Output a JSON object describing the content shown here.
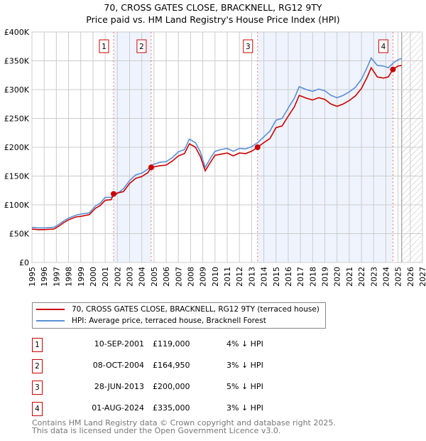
{
  "title": "70, CROSS GATES CLOSE, BRACKNELL, RG12 9TY",
  "subtitle": "Price paid vs. HM Land Registry's House Price Index (HPI)",
  "colors": {
    "property": "#cc0000",
    "hpi": "#5b8fd6",
    "shade": "#eef3fd",
    "grid": "#cccccc"
  },
  "chart_data": {
    "type": "line",
    "title": "70, CROSS GATES CLOSE, BRACKNELL, RG12 9TY — Price paid vs. HM Land Registry's House Price Index (HPI)",
    "xlim": [
      1995,
      2027
    ],
    "ylim": [
      0,
      400000
    ],
    "xticks": [
      "1995",
      "1996",
      "1997",
      "1998",
      "1999",
      "2000",
      "2001",
      "2002",
      "2003",
      "2004",
      "2005",
      "2006",
      "2007",
      "2008",
      "2009",
      "2010",
      "2011",
      "2012",
      "2013",
      "2014",
      "2015",
      "2016",
      "2017",
      "2018",
      "2019",
      "2020",
      "2021",
      "2022",
      "2023",
      "2024",
      "2025",
      "2026",
      "2027"
    ],
    "yticks": [
      {
        "v": 0,
        "label": "£0"
      },
      {
        "v": 50000,
        "label": "£50K"
      },
      {
        "v": 100000,
        "label": "£100K"
      },
      {
        "v": 150000,
        "label": "£150K"
      },
      {
        "v": 200000,
        "label": "£200K"
      },
      {
        "v": 250000,
        "label": "£250K"
      },
      {
        "v": 300000,
        "label": "£300K"
      },
      {
        "v": 350000,
        "label": "£350K"
      },
      {
        "v": 400000,
        "label": "£400K"
      }
    ],
    "forecast_start": 2025.3,
    "series": [
      {
        "name": "HPI: Average price, terraced house, Bracknell Forest",
        "x": [
          1995,
          1995.5,
          1996,
          1996.8,
          1997.2,
          1997.6,
          1998,
          1998.6,
          1999,
          1999.7,
          2000.2,
          2000.6,
          2001,
          2001.5,
          2001.9,
          2002.5,
          2003,
          2003.5,
          2004,
          2004.5,
          2004.9,
          2005.5,
          2006,
          2006.5,
          2007,
          2007.5,
          2007.9,
          2008.4,
          2008.8,
          2009.2,
          2009.6,
          2010,
          2010.5,
          2011,
          2011.5,
          2012,
          2012.5,
          2013,
          2013.5,
          2014,
          2014.5,
          2015,
          2015.5,
          2016,
          2016.5,
          2016.9,
          2017.5,
          2018,
          2018.5,
          2019,
          2019.5,
          2020,
          2020.5,
          2021,
          2021.5,
          2022,
          2022.5,
          2022.8,
          2023.3,
          2023.8,
          2024.2,
          2024.6,
          2025,
          2025.3
        ],
        "values": [
          61000,
          60000,
          60000,
          61000,
          66000,
          72000,
          77000,
          82000,
          84000,
          86000,
          98000,
          103000,
          113000,
          113000,
          118000,
          128000,
          142000,
          152000,
          155000,
          162000,
          170000,
          174000,
          175000,
          182000,
          192000,
          196000,
          214000,
          208000,
          192000,
          165000,
          180000,
          193000,
          196000,
          198000,
          193000,
          198000,
          197000,
          201000,
          208000,
          218000,
          228000,
          247000,
          250000,
          268000,
          285000,
          305000,
          300000,
          297000,
          301000,
          298000,
          290000,
          286000,
          290000,
          296000,
          304000,
          318000,
          340000,
          355000,
          342000,
          341000,
          338000,
          346000,
          352000,
          354000
        ]
      },
      {
        "name": "70, CROSS GATES CLOSE, BRACKNELL, RG12 9TY (terraced house)",
        "x": [
          1995,
          1995.5,
          1996,
          1996.8,
          1997.2,
          1997.6,
          1998,
          1998.6,
          1999,
          1999.7,
          2000.2,
          2000.6,
          2001,
          2001.5,
          2001.69,
          2002.5,
          2003,
          2003.5,
          2004,
          2004.5,
          2004.77,
          2005.5,
          2006,
          2006.5,
          2007,
          2007.5,
          2007.9,
          2008.4,
          2008.8,
          2009.2,
          2009.6,
          2010,
          2010.5,
          2011,
          2011.5,
          2012,
          2012.5,
          2013,
          2013.49,
          2014,
          2014.5,
          2015,
          2015.5,
          2016,
          2016.5,
          2016.9,
          2017.5,
          2018,
          2018.5,
          2019,
          2019.5,
          2020,
          2020.5,
          2021,
          2021.5,
          2022,
          2022.5,
          2022.8,
          2023.3,
          2023.8,
          2024.2,
          2024.58,
          2025,
          2025.3
        ],
        "values": [
          58000,
          57000,
          57000,
          58000,
          63000,
          69000,
          74000,
          79000,
          80000,
          83000,
          94000,
          99000,
          108000,
          109000,
          119000,
          123000,
          137000,
          146000,
          149000,
          156000,
          164950,
          168000,
          169000,
          176000,
          185000,
          189000,
          206000,
          200000,
          184000,
          159000,
          173000,
          186000,
          188000,
          190000,
          185000,
          190000,
          189000,
          193000,
          200000,
          208000,
          215000,
          234000,
          237000,
          254000,
          270000,
          290000,
          285000,
          282000,
          286000,
          283000,
          275000,
          271000,
          275000,
          281000,
          289000,
          302000,
          323000,
          338000,
          322000,
          320000,
          322000,
          335000,
          341000,
          342000
        ]
      }
    ],
    "sales": [
      {
        "label": "1",
        "x": 2001.69,
        "value": 119000,
        "date": "10-SEP-2001",
        "price": "£119,000",
        "diff": "4% ↓ HPI"
      },
      {
        "label": "2",
        "x": 2004.77,
        "value": 164950,
        "date": "08-OCT-2004",
        "price": "£164,950",
        "diff": "3% ↓ HPI"
      },
      {
        "label": "3",
        "x": 2013.49,
        "value": 200000,
        "date": "28-JUN-2013",
        "price": "£200,000",
        "diff": "5% ↓ HPI"
      },
      {
        "label": "4",
        "x": 2024.58,
        "value": 335000,
        "date": "01-AUG-2024",
        "price": "£335,000",
        "diff": "3% ↓ HPI"
      }
    ],
    "legend": [
      "70, CROSS GATES CLOSE, BRACKNELL, RG12 9TY (terraced house)",
      "HPI: Average price, terraced house, Bracknell Forest"
    ],
    "legend_position": "bottom"
  },
  "footer": [
    "Contains HM Land Registry data © Crown copyright and database right 2025.",
    "This data is licensed under the Open Government Licence v3.0."
  ]
}
